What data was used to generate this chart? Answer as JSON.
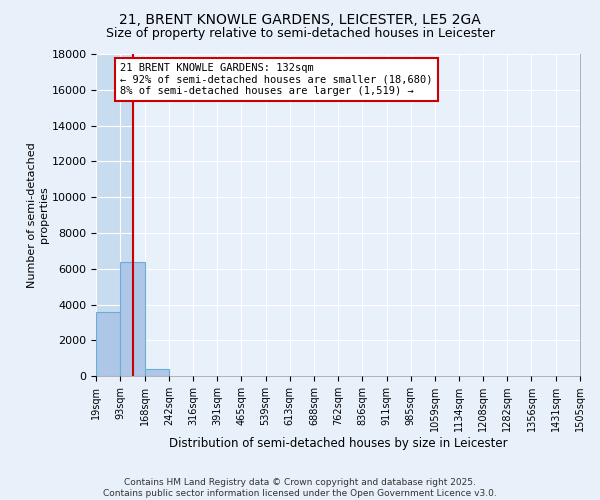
{
  "title": "21, BRENT KNOWLE GARDENS, LEICESTER, LE5 2GA",
  "subtitle": "Size of property relative to semi-detached houses in Leicester",
  "xlabel": "Distribution of semi-detached houses by size in Leicester",
  "ylabel": "Number of semi-detached\nproperties",
  "annotation_title": "21 BRENT KNOWLE GARDENS: 132sqm",
  "annotation_line1": "← 92% of semi-detached houses are smaller (18,680)",
  "annotation_line2": "8% of semi-detached houses are larger (1,519) →",
  "footer_line1": "Contains HM Land Registry data © Crown copyright and database right 2025.",
  "footer_line2": "Contains public sector information licensed under the Open Government Licence v3.0.",
  "bin_edges": [
    19,
    93,
    168,
    242,
    316,
    391,
    465,
    539,
    613,
    688,
    762,
    836,
    911,
    985,
    1059,
    1134,
    1208,
    1282,
    1356,
    1431,
    1505
  ],
  "bar_heights": [
    3600,
    6400,
    400,
    0,
    0,
    0,
    0,
    0,
    0,
    0,
    0,
    0,
    0,
    0,
    0,
    0,
    0,
    0,
    0,
    0
  ],
  "property_size": 132,
  "ylim": [
    0,
    18000
  ],
  "yticks": [
    0,
    2000,
    4000,
    6000,
    8000,
    10000,
    12000,
    14000,
    16000,
    18000
  ],
  "bar_color": "#aec6e8",
  "bar_edge_color": "#6aaed6",
  "shade_color": "#c8dcf0",
  "vline_color": "#cc0000",
  "annotation_box_color": "#cc0000",
  "background_color": "#e8f0fa",
  "grid_color": "#ffffff"
}
